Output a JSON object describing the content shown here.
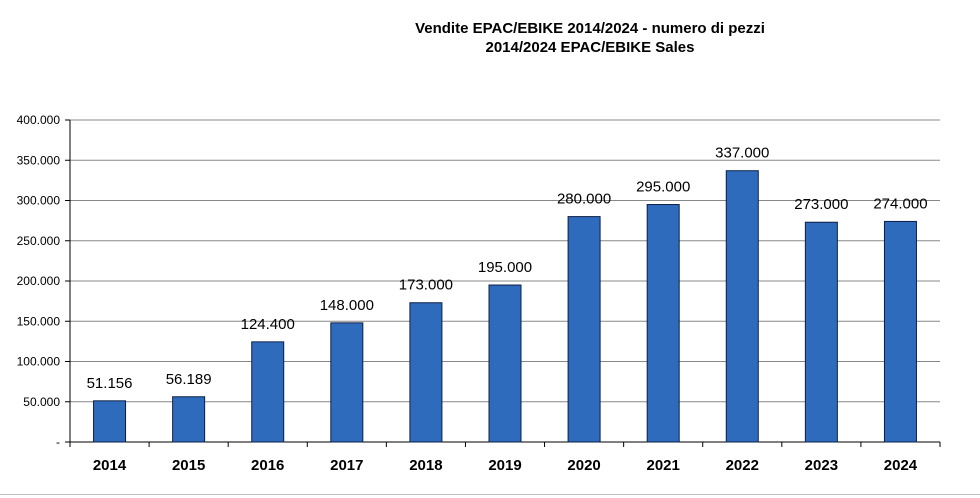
{
  "chart_data": {
    "type": "bar",
    "title": "Vendite EPAC/EBIKE 2014/2024 - numero di pezzi",
    "subtitle": "2014/2024 EPAC/EBIKE Sales",
    "categories": [
      "2014",
      "2015",
      "2016",
      "2017",
      "2018",
      "2019",
      "2020",
      "2021",
      "2022",
      "2023",
      "2024"
    ],
    "values": [
      51156,
      56189,
      124400,
      148000,
      173000,
      195000,
      280000,
      295000,
      337000,
      273000,
      274000
    ],
    "data_labels": [
      "51.156",
      "56.189",
      "124.400",
      "148.000",
      "173.000",
      "195.000",
      "280.000",
      "295.000",
      "337.000",
      "273.000",
      "274.000"
    ],
    "ylim": [
      0,
      400000
    ],
    "y_ticks": [
      0,
      50000,
      100000,
      150000,
      200000,
      250000,
      300000,
      350000,
      400000
    ],
    "y_tick_labels": [
      "-",
      "50.000",
      "100.000",
      "150.000",
      "200.000",
      "250.000",
      "300.000",
      "350.000",
      "400.000"
    ],
    "grid": true,
    "legend": "none",
    "bar_color": "#2f6bbd",
    "bar_stroke": "#0b1f45",
    "grid_color": "#888888"
  }
}
